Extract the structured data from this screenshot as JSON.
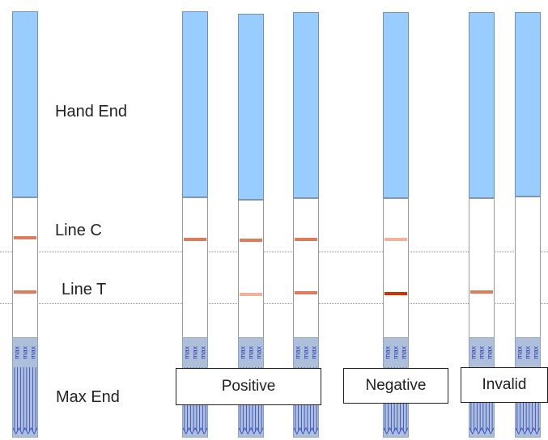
{
  "labels": {
    "hand_end": "Hand End",
    "line_c": "Line C",
    "line_t": "Line T",
    "max_end": "Max End"
  },
  "pad_text": "max",
  "results": {
    "positive": "Positive",
    "negative": "Negative",
    "invalid": "Invalid"
  },
  "colors": {
    "handle": "#99ccff",
    "line_strong": "#e07b5a",
    "line_faint": "#f0b29a",
    "line_dark": "#cc3300",
    "pad": "#aebfd9",
    "pad_text": "#2233bb"
  },
  "strips": [
    {
      "id": "reference",
      "line_c": "strong",
      "line_t": "strong"
    },
    {
      "id": "positive-1",
      "line_c": "strong",
      "line_t": "none"
    },
    {
      "id": "positive-2",
      "line_c": "strong",
      "line_t": "faint"
    },
    {
      "id": "positive-3",
      "line_c": "strong",
      "line_t": "strong"
    },
    {
      "id": "negative",
      "line_c": "faint",
      "line_t": "dark"
    },
    {
      "id": "invalid-1",
      "line_c": "none",
      "line_t": "strong"
    },
    {
      "id": "invalid-2",
      "line_c": "none",
      "line_t": "none"
    }
  ]
}
